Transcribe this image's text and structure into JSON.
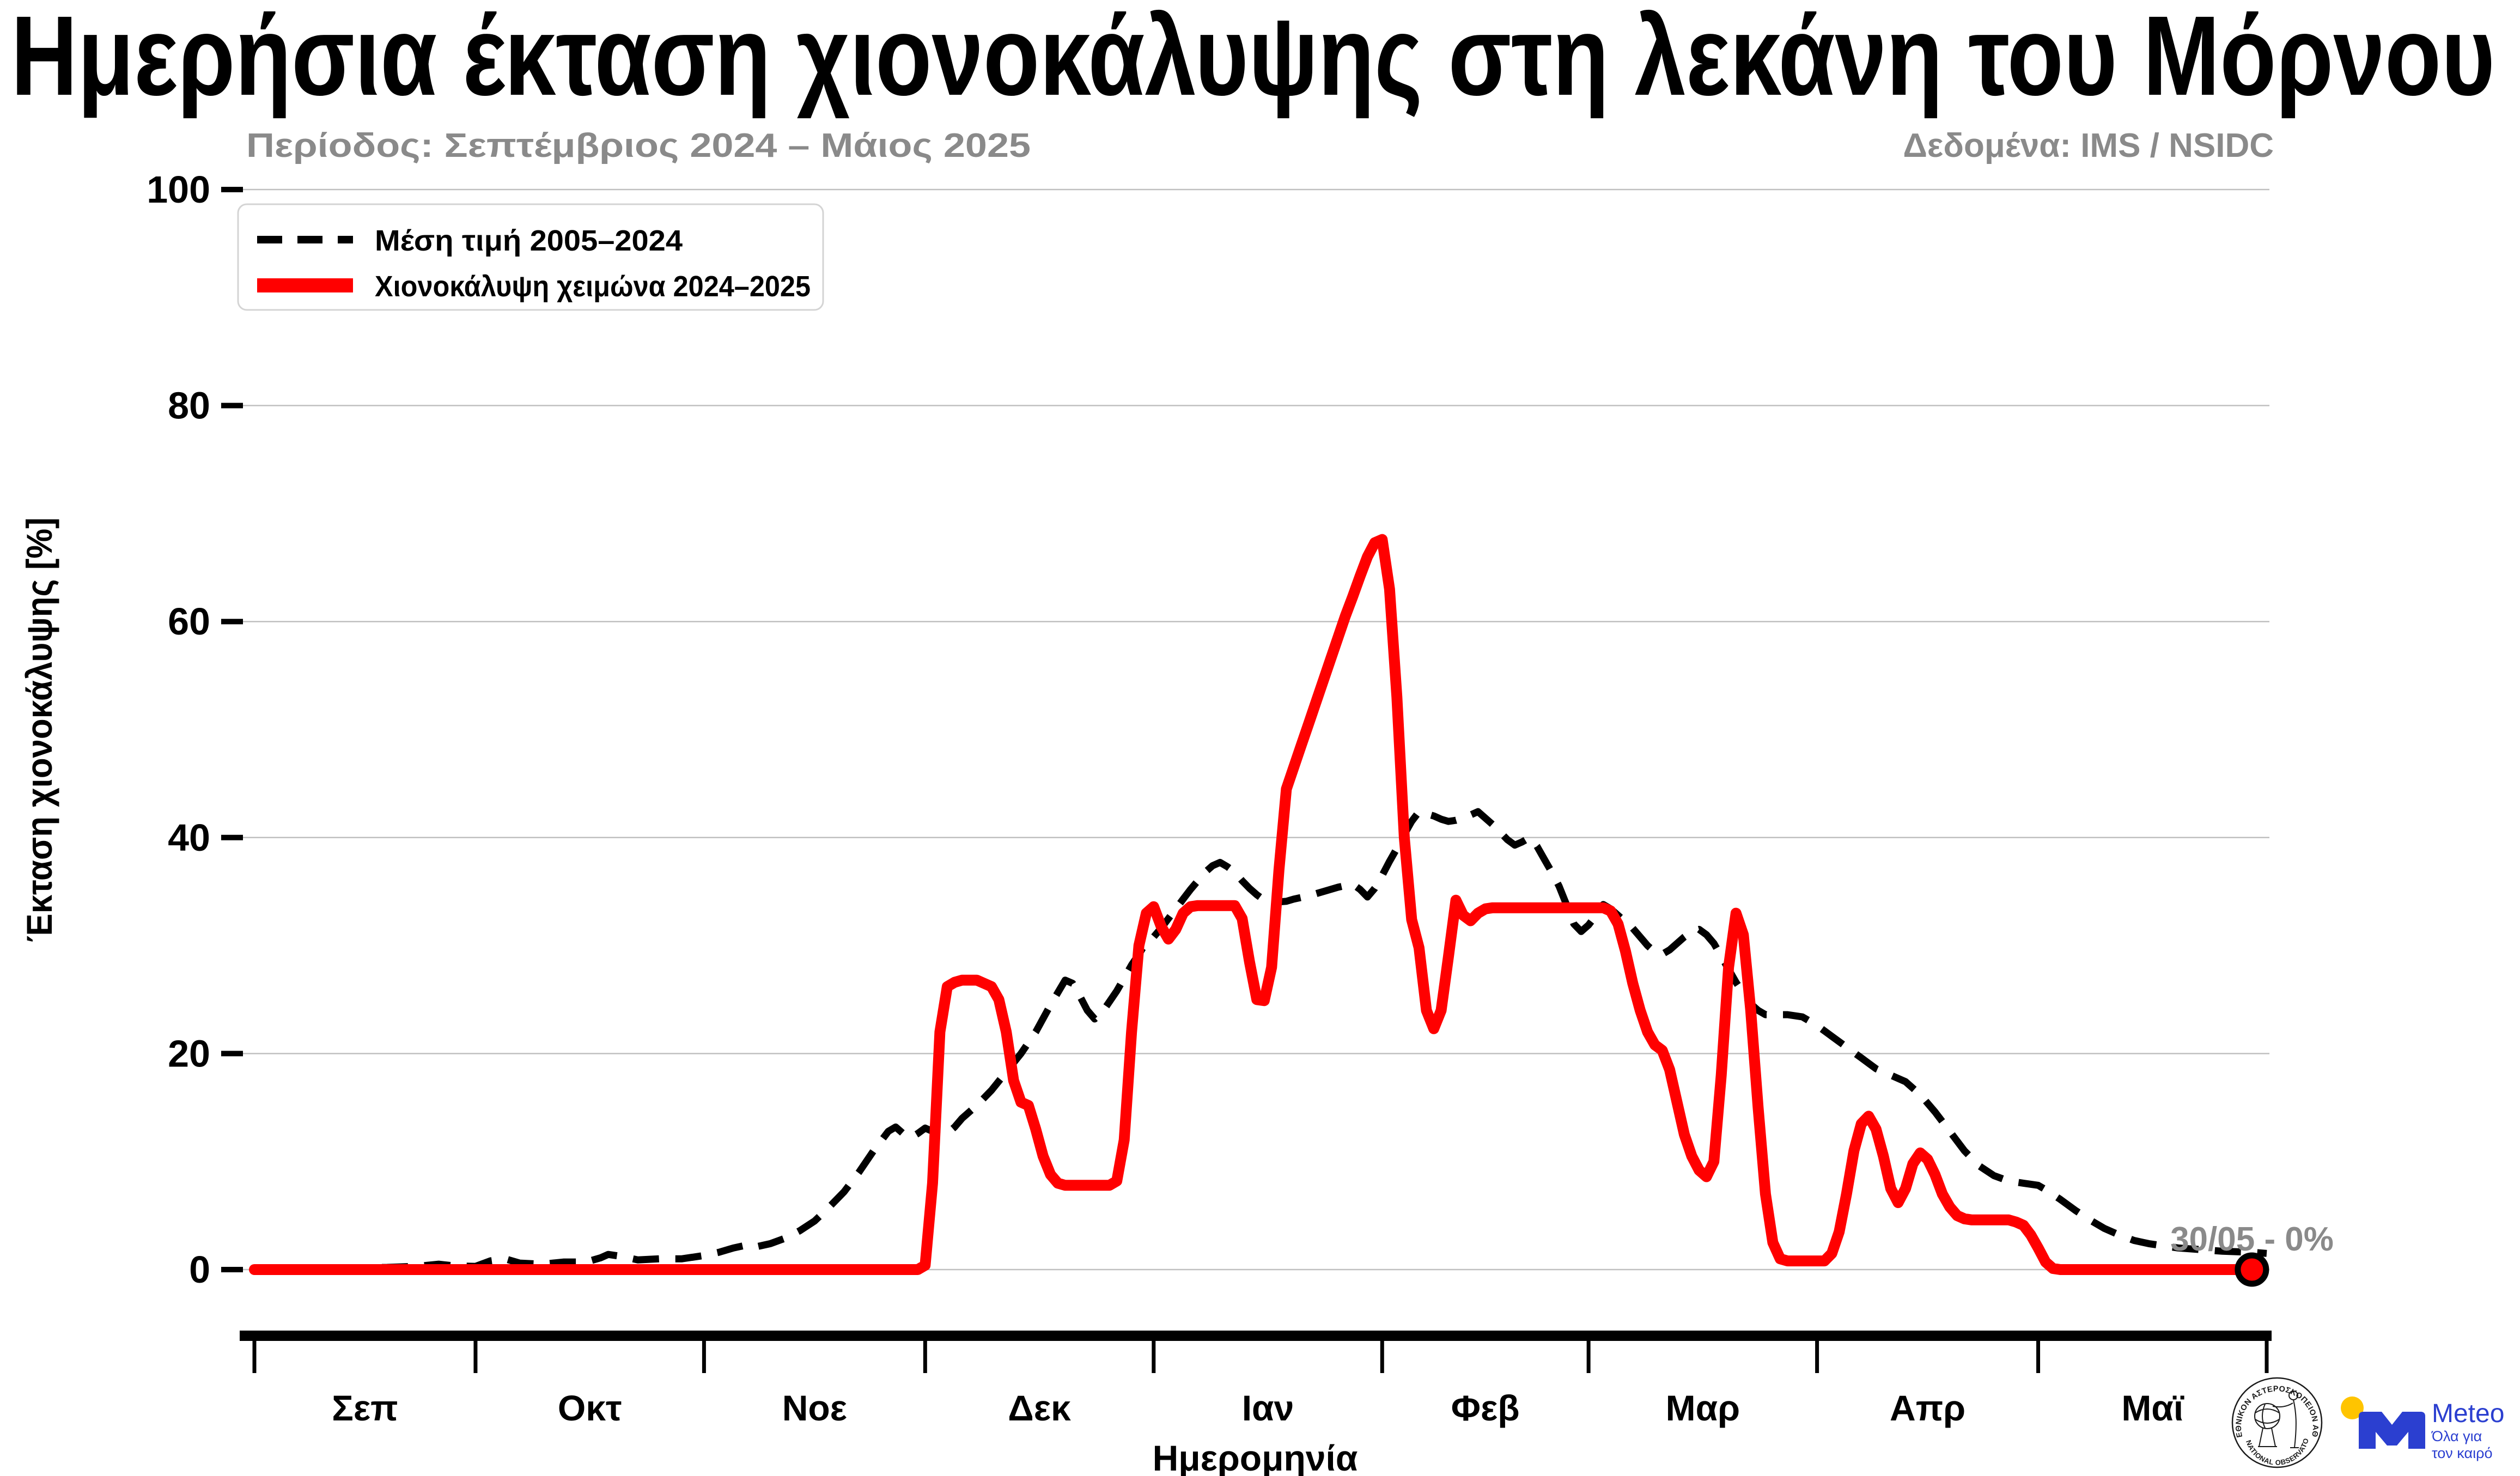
{
  "title": "Ημερήσια έκταση χιονοκάλυψης στη λεκάνη του Μόρνου",
  "subtitle": "Περίοδος: Σεπτέμβριος 2024 – Μάιος 2025",
  "data_source": "Δεδομένα: IMS / NSIDC",
  "annotation": {
    "text": "30/05 - 0%"
  },
  "legend": {
    "items": [
      {
        "label": "Μέση τιμή 2005–2024",
        "style": "dashed-black"
      },
      {
        "label": "Χιονοκάλυψη χειμώνα 2024–2025",
        "style": "solid-red"
      }
    ]
  },
  "colors": {
    "red": "#ff0000",
    "black": "#000000",
    "gray_text": "#8a8a8a",
    "grid": "#c0c0c0",
    "legend_border": "#d4d4d4",
    "meteo_blue": "#2b3fd0",
    "meteo_yellow": "#ffc400",
    "seal_ink": "#1a1a1a"
  },
  "logos": {
    "noa_seal_top": "ΕΘΝΙΚΟΝ ΑΣΤΕΡΟΣΚΟΠΕΙΟΝ ΑΘΗΝΩΝ",
    "noa_seal_bottom": "NATIONAL OBSERVATORY OF ATHENS",
    "meteo_name": "Meteo",
    "meteo_tagline_line1": "Όλα για",
    "meteo_tagline_line2": "τον καιρό"
  },
  "chart_data": {
    "type": "line",
    "title": "Ημερήσια έκταση χιονοκάλυψης στη λεκάνη του Μόρνου",
    "xlabel": "Ημερομηνία",
    "ylabel": "Έκταση χιονοκάλυψης [%]",
    "ylim": [
      0,
      100
    ],
    "yticks": [
      0,
      20,
      40,
      60,
      80,
      100
    ],
    "grid": "horizontal",
    "legend_position": "upper-left",
    "x_unit": "days since 2024-09-01",
    "month_tick_days": [
      0,
      30,
      61,
      91,
      122,
      153,
      181,
      212,
      242,
      273
    ],
    "month_label_days": [
      15,
      45.5,
      76,
      106.5,
      137.5,
      167,
      196.5,
      227,
      257.5
    ],
    "month_labels": [
      "Σεπ",
      "Οκτ",
      "Νοε",
      "Δεκ",
      "Ιαν",
      "Φεβ",
      "Μαρ",
      "Απρ",
      "Μαϊ"
    ],
    "end_marker": {
      "day": 271,
      "value": 0,
      "date_label": "30/05",
      "label": "30/05 - 0%"
    },
    "series": [
      {
        "name": "Μέση τιμή 2005–2024",
        "color": "#000000",
        "line": "dashed",
        "width": 13,
        "points": [
          [
            0,
            0.15
          ],
          [
            6,
            0.1
          ],
          [
            12,
            0.15
          ],
          [
            18,
            0.2
          ],
          [
            22,
            0.3
          ],
          [
            25,
            0.5
          ],
          [
            27,
            0.35
          ],
          [
            30,
            0.3
          ],
          [
            32,
            0.8
          ],
          [
            34,
            1.0
          ],
          [
            36,
            0.6
          ],
          [
            39,
            0.5
          ],
          [
            42,
            0.7
          ],
          [
            45,
            0.7
          ],
          [
            47,
            1.1
          ],
          [
            48,
            1.4
          ],
          [
            50,
            1.2
          ],
          [
            52,
            0.9
          ],
          [
            55,
            1.0
          ],
          [
            58,
            1.0
          ],
          [
            61,
            1.3
          ],
          [
            63,
            1.6
          ],
          [
            65,
            2.0
          ],
          [
            67,
            2.3
          ],
          [
            68,
            2.1
          ],
          [
            70,
            2.4
          ],
          [
            72,
            2.9
          ],
          [
            74,
            3.6
          ],
          [
            76,
            4.5
          ],
          [
            78,
            5.8
          ],
          [
            80,
            7.2
          ],
          [
            82,
            9.0
          ],
          [
            84,
            11.0
          ],
          [
            86,
            12.8
          ],
          [
            87,
            13.2
          ],
          [
            88,
            12.6
          ],
          [
            89,
            12.2
          ],
          [
            90,
            12.6
          ],
          [
            91,
            13.1
          ],
          [
            92,
            12.8
          ],
          [
            93,
            12.4
          ],
          [
            94,
            12.6
          ],
          [
            95,
            13.2
          ],
          [
            96,
            14.0
          ],
          [
            98,
            15.2
          ],
          [
            100,
            16.6
          ],
          [
            102,
            18.3
          ],
          [
            104,
            20.0
          ],
          [
            106,
            22.0
          ],
          [
            108,
            24.5
          ],
          [
            110,
            26.8
          ],
          [
            111,
            26.5
          ],
          [
            112,
            25.3
          ],
          [
            113,
            24.0
          ],
          [
            114,
            23.2
          ],
          [
            115,
            23.8
          ],
          [
            116,
            24.8
          ],
          [
            117,
            25.8
          ],
          [
            118,
            27.0
          ],
          [
            119,
            28.2
          ],
          [
            120,
            29.2
          ],
          [
            121,
            30.3
          ],
          [
            122,
            30.8
          ],
          [
            123,
            31.6
          ],
          [
            124,
            32.5
          ],
          [
            125,
            33.4
          ],
          [
            126,
            34.3
          ],
          [
            127,
            35.2
          ],
          [
            128,
            36.0
          ],
          [
            129,
            36.8
          ],
          [
            130,
            37.4
          ],
          [
            131,
            37.7
          ],
          [
            132,
            37.3
          ],
          [
            133,
            36.8
          ],
          [
            134,
            36.0
          ],
          [
            135,
            35.3
          ],
          [
            136,
            34.7
          ],
          [
            137,
            34.2
          ],
          [
            138,
            34.0
          ],
          [
            140,
            34.1
          ],
          [
            141,
            34.3
          ],
          [
            143,
            34.6
          ],
          [
            145,
            35.0
          ],
          [
            147,
            35.4
          ],
          [
            149,
            35.7
          ],
          [
            150,
            35.2
          ],
          [
            151,
            34.5
          ],
          [
            152,
            35.3
          ],
          [
            153,
            36.5
          ],
          [
            154,
            37.8
          ],
          [
            155,
            39.0
          ],
          [
            156,
            40.3
          ],
          [
            157,
            41.5
          ],
          [
            158,
            42.4
          ],
          [
            159,
            42.2
          ],
          [
            160,
            42.0
          ],
          [
            161,
            41.7
          ],
          [
            162,
            41.5
          ],
          [
            163,
            41.6
          ],
          [
            164,
            41.8
          ],
          [
            165,
            42.1
          ],
          [
            166,
            42.4
          ],
          [
            167,
            41.8
          ],
          [
            168,
            41.2
          ],
          [
            169,
            40.5
          ],
          [
            170,
            39.8
          ],
          [
            171,
            39.3
          ],
          [
            172,
            39.6
          ],
          [
            173,
            40.0
          ],
          [
            174,
            39.2
          ],
          [
            175,
            38.0
          ],
          [
            176,
            36.8
          ],
          [
            177,
            35.5
          ],
          [
            178,
            33.8
          ],
          [
            179,
            32.0
          ],
          [
            180,
            31.3
          ],
          [
            181,
            31.9
          ],
          [
            182,
            32.8
          ],
          [
            183,
            33.8
          ],
          [
            184,
            33.4
          ],
          [
            185,
            32.8
          ],
          [
            186,
            32.2
          ],
          [
            187,
            31.6
          ],
          [
            188,
            30.8
          ],
          [
            189,
            30.0
          ],
          [
            190,
            29.4
          ],
          [
            191,
            29.2
          ],
          [
            192,
            29.6
          ],
          [
            193,
            30.2
          ],
          [
            194,
            30.8
          ],
          [
            195,
            31.3
          ],
          [
            196,
            31.5
          ],
          [
            197,
            31.0
          ],
          [
            198,
            30.2
          ],
          [
            199,
            29.0
          ],
          [
            200,
            27.8
          ],
          [
            201,
            26.6
          ],
          [
            202,
            25.6
          ],
          [
            203,
            24.6
          ],
          [
            204,
            24.0
          ],
          [
            205,
            23.6
          ],
          [
            208,
            23.6
          ],
          [
            210,
            23.4
          ],
          [
            212,
            22.6
          ],
          [
            214,
            21.6
          ],
          [
            216,
            20.6
          ],
          [
            218,
            19.6
          ],
          [
            220,
            18.6
          ],
          [
            222,
            18.0
          ],
          [
            224,
            17.4
          ],
          [
            226,
            16.2
          ],
          [
            228,
            14.6
          ],
          [
            230,
            12.8
          ],
          [
            232,
            11.0
          ],
          [
            234,
            9.6
          ],
          [
            236,
            8.7
          ],
          [
            238,
            8.2
          ],
          [
            240,
            8.0
          ],
          [
            242,
            7.8
          ],
          [
            243,
            7.4
          ],
          [
            245,
            6.5
          ],
          [
            247,
            5.5
          ],
          [
            249,
            4.6
          ],
          [
            251,
            3.8
          ],
          [
            253,
            3.2
          ],
          [
            255,
            2.7
          ],
          [
            257,
            2.4
          ],
          [
            259,
            2.2
          ],
          [
            261,
            2.0
          ],
          [
            263,
            1.9
          ],
          [
            265,
            1.8
          ],
          [
            267,
            1.7
          ],
          [
            269,
            1.65
          ],
          [
            271,
            1.6
          ],
          [
            273,
            1.5
          ]
        ]
      },
      {
        "name": "Χιονοκάλυψη χειμώνα 2024–2025",
        "color": "#ff0000",
        "line": "solid",
        "width": 20,
        "points": [
          [
            0,
            0
          ],
          [
            88,
            0
          ],
          [
            90,
            0
          ],
          [
            91,
            0.4
          ],
          [
            92,
            8
          ],
          [
            93,
            22
          ],
          [
            94,
            26.2
          ],
          [
            95,
            26.6
          ],
          [
            96,
            26.8
          ],
          [
            98,
            26.8
          ],
          [
            99,
            26.5
          ],
          [
            100,
            26.2
          ],
          [
            101,
            25
          ],
          [
            102,
            22
          ],
          [
            103,
            17.5
          ],
          [
            104,
            15.5
          ],
          [
            105,
            15.2
          ],
          [
            106,
            13
          ],
          [
            107,
            10.5
          ],
          [
            108,
            8.8
          ],
          [
            109,
            8
          ],
          [
            110,
            7.8
          ],
          [
            116,
            7.8
          ],
          [
            117,
            8.2
          ],
          [
            118,
            12
          ],
          [
            119,
            22
          ],
          [
            120,
            30
          ],
          [
            121,
            33
          ],
          [
            122,
            33.6
          ],
          [
            123,
            31.8
          ],
          [
            124,
            30.6
          ],
          [
            125,
            31.5
          ],
          [
            126,
            33
          ],
          [
            127,
            33.6
          ],
          [
            128,
            33.7
          ],
          [
            133,
            33.7
          ],
          [
            134,
            32.5
          ],
          [
            135,
            28.5
          ],
          [
            136,
            25
          ],
          [
            137,
            24.9
          ],
          [
            138,
            28
          ],
          [
            139,
            37
          ],
          [
            140,
            44.5
          ],
          [
            141,
            46.5
          ],
          [
            142,
            48.5
          ],
          [
            143,
            50.5
          ],
          [
            144,
            52.5
          ],
          [
            145,
            54.5
          ],
          [
            146,
            56.5
          ],
          [
            147,
            58.5
          ],
          [
            148,
            60.5
          ],
          [
            149,
            62.3
          ],
          [
            150,
            64.2
          ],
          [
            151,
            66
          ],
          [
            152,
            67.3
          ],
          [
            153,
            67.6
          ],
          [
            154,
            63
          ],
          [
            155,
            53
          ],
          [
            156,
            40
          ],
          [
            157,
            32.4
          ],
          [
            158,
            29.8
          ],
          [
            159,
            24
          ],
          [
            160,
            22.3
          ],
          [
            161,
            24
          ],
          [
            162,
            29
          ],
          [
            163,
            34.2
          ],
          [
            164,
            32.8
          ],
          [
            165,
            32.3
          ],
          [
            166,
            33
          ],
          [
            167,
            33.4
          ],
          [
            168,
            33.5
          ],
          [
            183,
            33.5
          ],
          [
            184,
            33.2
          ],
          [
            185,
            32
          ],
          [
            186,
            29.5
          ],
          [
            187,
            26.5
          ],
          [
            188,
            24
          ],
          [
            189,
            22
          ],
          [
            190,
            20.8
          ],
          [
            191,
            20.3
          ],
          [
            192,
            18.5
          ],
          [
            193,
            15.5
          ],
          [
            194,
            12.5
          ],
          [
            195,
            10.5
          ],
          [
            196,
            9.2
          ],
          [
            197,
            8.6
          ],
          [
            198,
            10
          ],
          [
            199,
            18
          ],
          [
            200,
            28
          ],
          [
            201,
            33
          ],
          [
            202,
            31
          ],
          [
            203,
            24
          ],
          [
            204,
            15
          ],
          [
            205,
            7
          ],
          [
            206,
            2.5
          ],
          [
            207,
            1
          ],
          [
            208,
            0.8
          ],
          [
            213,
            0.8
          ],
          [
            214,
            1.5
          ],
          [
            215,
            3.5
          ],
          [
            216,
            7
          ],
          [
            217,
            11
          ],
          [
            218,
            13.5
          ],
          [
            219,
            14.2
          ],
          [
            220,
            13
          ],
          [
            221,
            10.5
          ],
          [
            222,
            7.5
          ],
          [
            223,
            6.2
          ],
          [
            224,
            7.5
          ],
          [
            225,
            9.8
          ],
          [
            226,
            10.8
          ],
          [
            227,
            10.2
          ],
          [
            228,
            8.8
          ],
          [
            229,
            7
          ],
          [
            230,
            5.8
          ],
          [
            231,
            5
          ],
          [
            232,
            4.7
          ],
          [
            233,
            4.6
          ],
          [
            238,
            4.6
          ],
          [
            239,
            4.4
          ],
          [
            240,
            4.1
          ],
          [
            241,
            3.2
          ],
          [
            242,
            2
          ],
          [
            243,
            0.7
          ],
          [
            244,
            0.1
          ],
          [
            245,
            0
          ],
          [
            271,
            0
          ]
        ]
      }
    ]
  }
}
